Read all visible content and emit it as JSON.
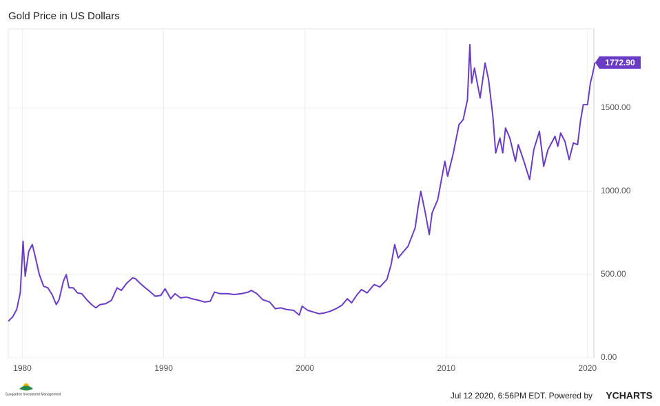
{
  "chart_data": {
    "type": "line",
    "title": "Gold Price in US Dollars",
    "series": [
      {
        "name": "Gold Price in US Dollars",
        "color": "#6a3cc6",
        "x": [
          1979.0,
          1979.3,
          1979.6,
          1979.85,
          1980.05,
          1980.2,
          1980.45,
          1980.7,
          1980.9,
          1981.2,
          1981.5,
          1981.8,
          1982.1,
          1982.4,
          1982.6,
          1982.9,
          1983.1,
          1983.3,
          1983.6,
          1983.9,
          1984.2,
          1984.6,
          1984.9,
          1985.2,
          1985.5,
          1985.9,
          1986.3,
          1986.7,
          1987.0,
          1987.4,
          1987.8,
          1988.0,
          1988.3,
          1988.7,
          1989.0,
          1989.4,
          1989.8,
          1990.1,
          1990.5,
          1990.8,
          1991.2,
          1991.6,
          1992.0,
          1992.5,
          1992.9,
          1993.3,
          1993.6,
          1994.0,
          1994.5,
          1995.0,
          1995.5,
          1996.0,
          1996.2,
          1996.6,
          1997.0,
          1997.5,
          1997.9,
          1998.3,
          1998.7,
          1999.2,
          1999.6,
          1999.8,
          2000.2,
          2000.6,
          2001.0,
          2001.4,
          2001.8,
          2002.2,
          2002.6,
          2003.0,
          2003.3,
          2003.7,
          2004.0,
          2004.4,
          2004.9,
          2005.3,
          2005.8,
          2006.1,
          2006.35,
          2006.6,
          2006.9,
          2007.3,
          2007.8,
          2008.0,
          2008.2,
          2008.5,
          2008.8,
          2009.0,
          2009.4,
          2009.9,
          2010.1,
          2010.5,
          2010.9,
          2011.2,
          2011.5,
          2011.67,
          2011.8,
          2012.0,
          2012.4,
          2012.75,
          2013.0,
          2013.3,
          2013.5,
          2013.8,
          2014.0,
          2014.2,
          2014.5,
          2014.9,
          2015.1,
          2015.5,
          2015.9,
          2016.2,
          2016.6,
          2016.9,
          2017.2,
          2017.7,
          2017.9,
          2018.1,
          2018.4,
          2018.7,
          2019.0,
          2019.3,
          2019.5,
          2019.7,
          2020.0,
          2020.2,
          2020.35,
          2020.53
        ],
        "values": [
          220,
          245,
          290,
          390,
          700,
          490,
          640,
          680,
          610,
          500,
          430,
          420,
          380,
          320,
          350,
          460,
          500,
          420,
          420,
          390,
          385,
          345,
          320,
          300,
          320,
          325,
          345,
          420,
          405,
          450,
          480,
          475,
          450,
          420,
          400,
          370,
          375,
          415,
          355,
          385,
          360,
          365,
          355,
          345,
          335,
          340,
          395,
          385,
          385,
          380,
          385,
          395,
          405,
          385,
          350,
          335,
          295,
          300,
          290,
          285,
          257,
          310,
          285,
          275,
          265,
          270,
          280,
          295,
          315,
          355,
          330,
          380,
          410,
          390,
          440,
          425,
          470,
          560,
          680,
          600,
          630,
          670,
          780,
          900,
          1000,
          880,
          740,
          870,
          950,
          1180,
          1090,
          1230,
          1400,
          1430,
          1550,
          1880,
          1650,
          1740,
          1560,
          1770,
          1670,
          1450,
          1230,
          1320,
          1230,
          1380,
          1320,
          1180,
          1280,
          1180,
          1070,
          1250,
          1360,
          1150,
          1250,
          1330,
          1270,
          1350,
          1300,
          1190,
          1290,
          1280,
          1420,
          1520,
          1520,
          1650,
          1700,
          1772.9
        ]
      }
    ],
    "annotation": {
      "value": 1772.9,
      "label": "1772.90"
    },
    "xlim": [
      1979,
      2020.45
    ],
    "xticks": [
      1980,
      1990,
      2000,
      2010,
      2020
    ],
    "ylim": [
      0,
      1975
    ],
    "yticks": [
      {
        "value": 0,
        "label": "0.00"
      },
      {
        "value": 500,
        "label": "500.00"
      },
      {
        "value": 1000,
        "label": "1000.00"
      },
      {
        "value": 1500,
        "label": "1500.00"
      }
    ],
    "grid": true,
    "footer": "Jul 12 2020, 6:56PM EDT. Powered by",
    "brand": "YCHARTS",
    "logo_text": "Sungarden Investment Management"
  }
}
